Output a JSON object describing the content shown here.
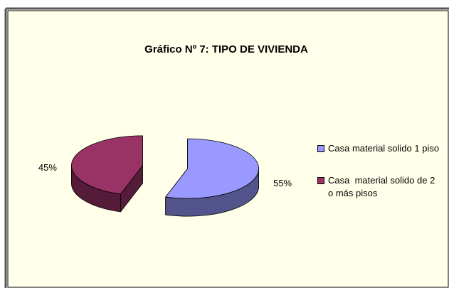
{
  "chart_data": {
    "type": "pie3d",
    "title": "Gráfico Nº 7: TIPO DE VIVIENDA",
    "categories": [
      "Casa material solido 1 piso",
      "Casa  material solido de 2  o más pisos"
    ],
    "values": [
      55,
      45
    ],
    "value_labels": [
      "55%",
      "45%"
    ],
    "colors": [
      "#9999ff",
      "#993366"
    ],
    "legend": "right"
  }
}
